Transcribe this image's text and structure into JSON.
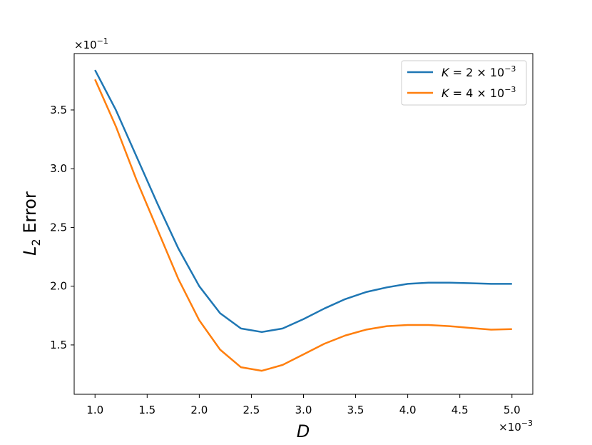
{
  "chart_data": {
    "type": "line",
    "title": "",
    "xlabel": "D",
    "ylabel_main": "L",
    "ylabel_sub": "2",
    "ylabel_rest": " Error",
    "x_multiplier": "×10",
    "x_multiplier_exp": "−3",
    "y_multiplier": "×10",
    "y_multiplier_exp": "−1",
    "xlim": [
      0.8,
      5.2
    ],
    "ylim": [
      1.08,
      3.98
    ],
    "xticks": [
      1.0,
      1.5,
      2.0,
      2.5,
      3.0,
      3.5,
      4.0,
      4.5,
      5.0
    ],
    "xtick_labels": [
      "1.0",
      "1.5",
      "2.0",
      "2.5",
      "3.0",
      "3.5",
      "4.0",
      "4.5",
      "5.0"
    ],
    "yticks": [
      1.5,
      2.0,
      2.5,
      3.0,
      3.5
    ],
    "ytick_labels": [
      "1.5",
      "2.0",
      "2.5",
      "3.0",
      "3.5"
    ],
    "grid": false,
    "legend_position": "top-right",
    "x": [
      1.0,
      1.2,
      1.4,
      1.6,
      1.8,
      2.0,
      2.2,
      2.4,
      2.6,
      2.8,
      3.0,
      3.2,
      3.4,
      3.6,
      3.8,
      4.0,
      4.2,
      4.4,
      4.6,
      4.8,
      5.0
    ],
    "series": [
      {
        "name_var": "K",
        "name_val": " = 2 × 10",
        "name_exp": "−3",
        "color": "#1f77b4",
        "values": [
          3.84,
          3.5,
          3.1,
          2.7,
          2.32,
          2.0,
          1.77,
          1.64,
          1.61,
          1.64,
          1.72,
          1.81,
          1.89,
          1.95,
          1.99,
          2.02,
          2.03,
          2.03,
          2.025,
          2.02,
          2.02
        ]
      },
      {
        "name_var": "K",
        "name_val": " = 4 × 10",
        "name_exp": "−3",
        "color": "#ff7f0e",
        "values": [
          3.76,
          3.36,
          2.9,
          2.48,
          2.06,
          1.71,
          1.46,
          1.31,
          1.28,
          1.33,
          1.42,
          1.51,
          1.58,
          1.63,
          1.66,
          1.67,
          1.67,
          1.66,
          1.645,
          1.63,
          1.635
        ]
      }
    ]
  }
}
